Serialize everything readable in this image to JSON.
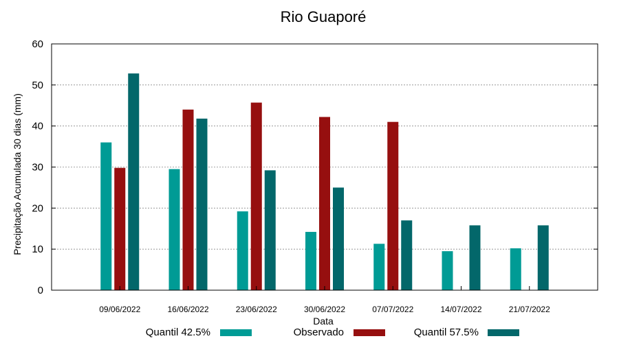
{
  "chart_data": {
    "type": "bar",
    "title": "Rio Guaporé",
    "xlabel": "Data",
    "ylabel": "Precipitação Acumulada 30 dias (mm)",
    "ylim": [
      0,
      60
    ],
    "yticks": [
      0,
      10,
      20,
      30,
      40,
      50,
      60
    ],
    "grid": true,
    "legend_position": "bottom",
    "categories": [
      "09/06/2022",
      "16/06/2022",
      "23/06/2022",
      "30/06/2022",
      "07/07/2022",
      "14/07/2022",
      "21/07/2022"
    ],
    "series": [
      {
        "name": "Quantil 42.5%",
        "color": "#009B95",
        "values": [
          36.0,
          29.5,
          19.2,
          14.2,
          11.3,
          9.5,
          10.2
        ]
      },
      {
        "name": "Observado",
        "color": "#960F0F",
        "values": [
          29.8,
          44.0,
          45.7,
          42.2,
          41.0,
          null,
          null
        ]
      },
      {
        "name": "Quantil 57.5%",
        "color": "#03676A",
        "values": [
          52.8,
          41.8,
          29.2,
          25.0,
          17.0,
          15.8,
          15.8
        ]
      }
    ]
  }
}
